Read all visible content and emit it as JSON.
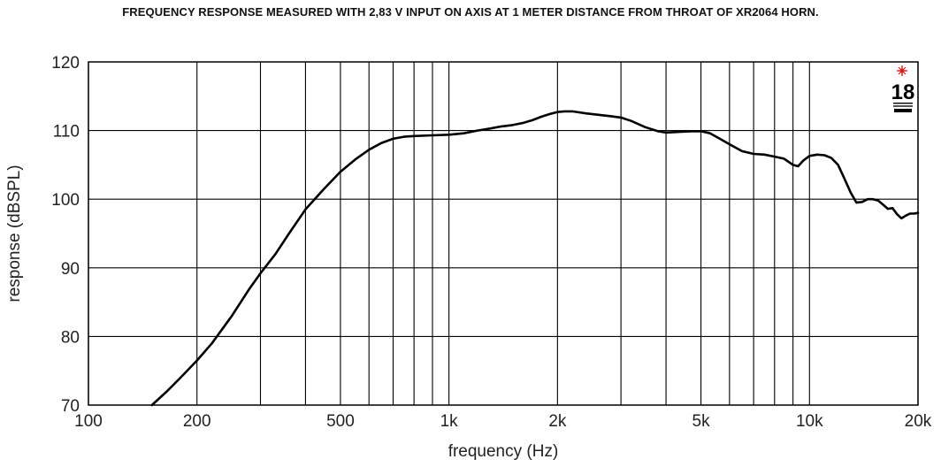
{
  "chart_data": {
    "type": "line",
    "title": "FREQUENCY RESPONSE MEASURED WITH 2,83 V INPUT ON AXIS AT 1 METER DISTANCE FROM THROAT OF XR2064 HORN.",
    "xlabel": "frequency (Hz)",
    "ylabel": "response (dBSPL)",
    "x_scale": "log",
    "xlim": [
      100,
      20000
    ],
    "ylim": [
      70,
      120
    ],
    "grid": true,
    "x_ticks": [
      {
        "value": 100,
        "label": "100"
      },
      {
        "value": 200,
        "label": "200"
      },
      {
        "value": 500,
        "label": "500"
      },
      {
        "value": 1000,
        "label": "1k"
      },
      {
        "value": 2000,
        "label": "2k"
      },
      {
        "value": 5000,
        "label": "5k"
      },
      {
        "value": 10000,
        "label": "10k"
      },
      {
        "value": 20000,
        "label": "20k"
      }
    ],
    "x_gridlines": [
      100,
      200,
      300,
      400,
      500,
      600,
      700,
      800,
      900,
      1000,
      2000,
      3000,
      4000,
      5000,
      6000,
      7000,
      8000,
      9000,
      10000,
      20000
    ],
    "y_ticks": [
      70,
      80,
      90,
      100,
      110,
      120
    ],
    "series": [
      {
        "color": "#000000",
        "points": [
          [
            150,
            70
          ],
          [
            165,
            72
          ],
          [
            180,
            74
          ],
          [
            200,
            76.5
          ],
          [
            220,
            79
          ],
          [
            250,
            83
          ],
          [
            280,
            87
          ],
          [
            300,
            89.2
          ],
          [
            330,
            92
          ],
          [
            360,
            95
          ],
          [
            400,
            98.5
          ],
          [
            450,
            101.5
          ],
          [
            500,
            104
          ],
          [
            550,
            105.8
          ],
          [
            600,
            107.2
          ],
          [
            650,
            108.2
          ],
          [
            700,
            108.8
          ],
          [
            750,
            109.1
          ],
          [
            800,
            109.2
          ],
          [
            900,
            109.3
          ],
          [
            1000,
            109.4
          ],
          [
            1100,
            109.6
          ],
          [
            1200,
            110
          ],
          [
            1300,
            110.3
          ],
          [
            1400,
            110.6
          ],
          [
            1500,
            110.8
          ],
          [
            1600,
            111.1
          ],
          [
            1700,
            111.5
          ],
          [
            1800,
            112
          ],
          [
            1900,
            112.4
          ],
          [
            2000,
            112.7
          ],
          [
            2100,
            112.8
          ],
          [
            2200,
            112.8
          ],
          [
            2400,
            112.5
          ],
          [
            2600,
            112.3
          ],
          [
            2800,
            112.1
          ],
          [
            3000,
            111.9
          ],
          [
            3200,
            111.4
          ],
          [
            3500,
            110.5
          ],
          [
            3800,
            109.9
          ],
          [
            4000,
            109.7
          ],
          [
            4300,
            109.8
          ],
          [
            4700,
            109.9
          ],
          [
            5000,
            109.9
          ],
          [
            5300,
            109.6
          ],
          [
            5600,
            108.9
          ],
          [
            6000,
            108
          ],
          [
            6500,
            107
          ],
          [
            7000,
            106.6
          ],
          [
            7500,
            106.5
          ],
          [
            8000,
            106.2
          ],
          [
            8500,
            105.9
          ],
          [
            9000,
            105
          ],
          [
            9300,
            104.8
          ],
          [
            9600,
            105.6
          ],
          [
            10000,
            106.3
          ],
          [
            10500,
            106.5
          ],
          [
            11000,
            106.4
          ],
          [
            11500,
            106
          ],
          [
            12000,
            105
          ],
          [
            12500,
            103
          ],
          [
            13000,
            101
          ],
          [
            13500,
            99.5
          ],
          [
            14000,
            99.6
          ],
          [
            14500,
            100
          ],
          [
            15000,
            100
          ],
          [
            15500,
            99.8
          ],
          [
            16000,
            99.2
          ],
          [
            16500,
            98.6
          ],
          [
            17000,
            98.7
          ],
          [
            17500,
            97.8
          ],
          [
            18000,
            97.2
          ],
          [
            18500,
            97.6
          ],
          [
            19000,
            97.9
          ],
          [
            19500,
            97.9
          ],
          [
            20000,
            98
          ]
        ]
      }
    ]
  }
}
